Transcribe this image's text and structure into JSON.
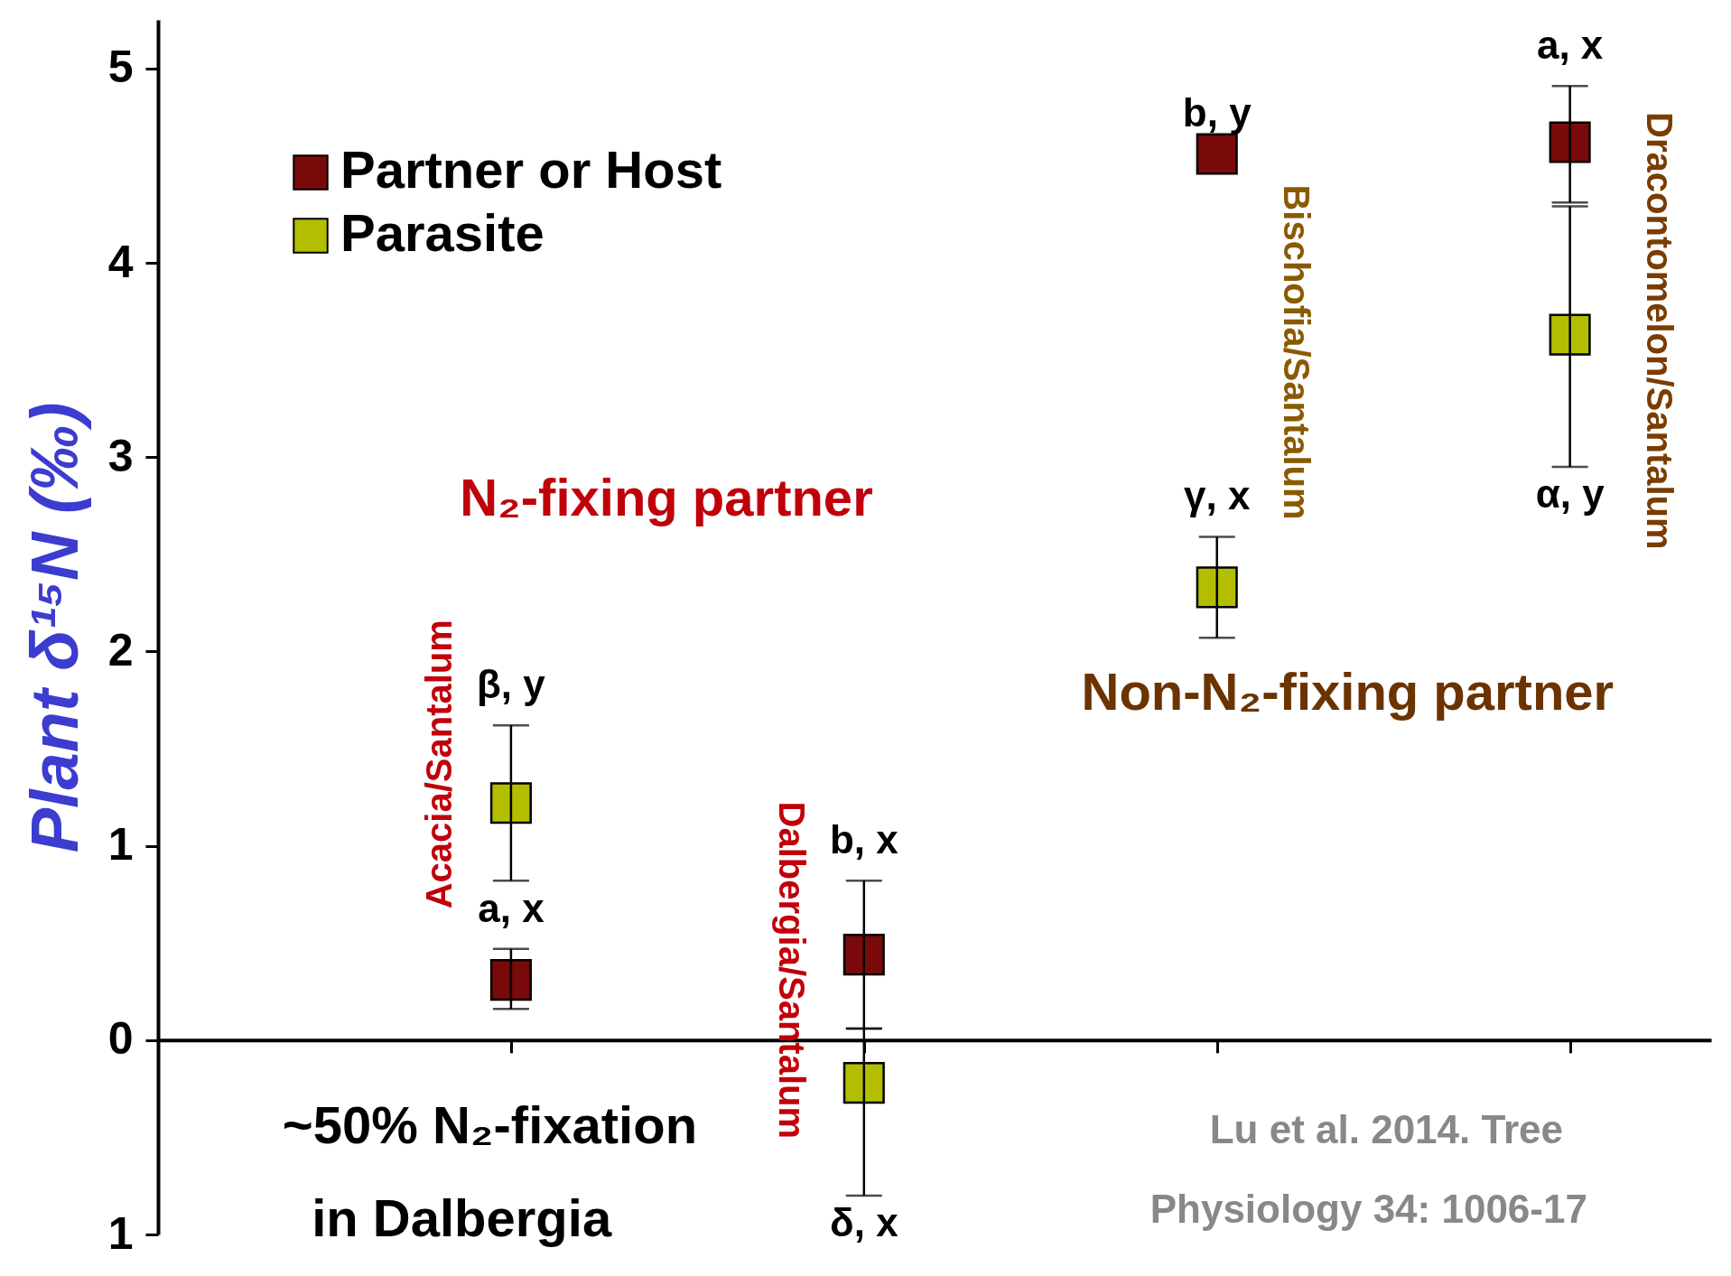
{
  "chart_data": {
    "type": "scatter",
    "ylabel": "Plant δ¹⁵N (‰)",
    "categories": [
      null,
      null,
      null,
      null
    ],
    "ylim": [
      -1,
      5.25
    ],
    "yticks": [
      {
        "value": -1,
        "label": "1"
      },
      0,
      1,
      2,
      3,
      4,
      5
    ],
    "tick_labels": "y",
    "legend": "top left",
    "marker": "square",
    "series": [
      {
        "name": "Partner or Host",
        "color": "#7a0a0a",
        "values": [
          0.31,
          0.44,
          4.56,
          4.62
        ],
        "errors": [
          [
            0.16,
            0.47
          ],
          [
            0.06,
            0.82
          ],
          null,
          [
            4.31,
            4.91
          ]
        ],
        "value_labels": [
          "a, x",
          "b, x",
          "b, y",
          "a, x"
        ]
      },
      {
        "name": "Parasite",
        "color": "#b4be00",
        "values": [
          1.22,
          -0.22,
          2.33,
          3.63
        ],
        "errors": [
          [
            0.82,
            1.62
          ],
          [
            -0.8,
            0.06
          ],
          [
            2.07,
            2.59
          ],
          [
            2.95,
            4.29
          ]
        ],
        "value_labels": [
          "β, y",
          "δ, x",
          "γ, x",
          "α, y"
        ]
      }
    ],
    "annotations": [
      "Acacia/Santalum",
      "Dalbergia/Santalum",
      "Bischofia/Santalum",
      "Dracontomelon/Santalum",
      "N₂-fixing partner",
      "Non-N₂-fixing partner",
      "~50% N₂-fixation",
      "in Dalbergia",
      "Lu et al. 2014. Tree",
      "Physiology 34: 1006-17"
    ]
  }
}
